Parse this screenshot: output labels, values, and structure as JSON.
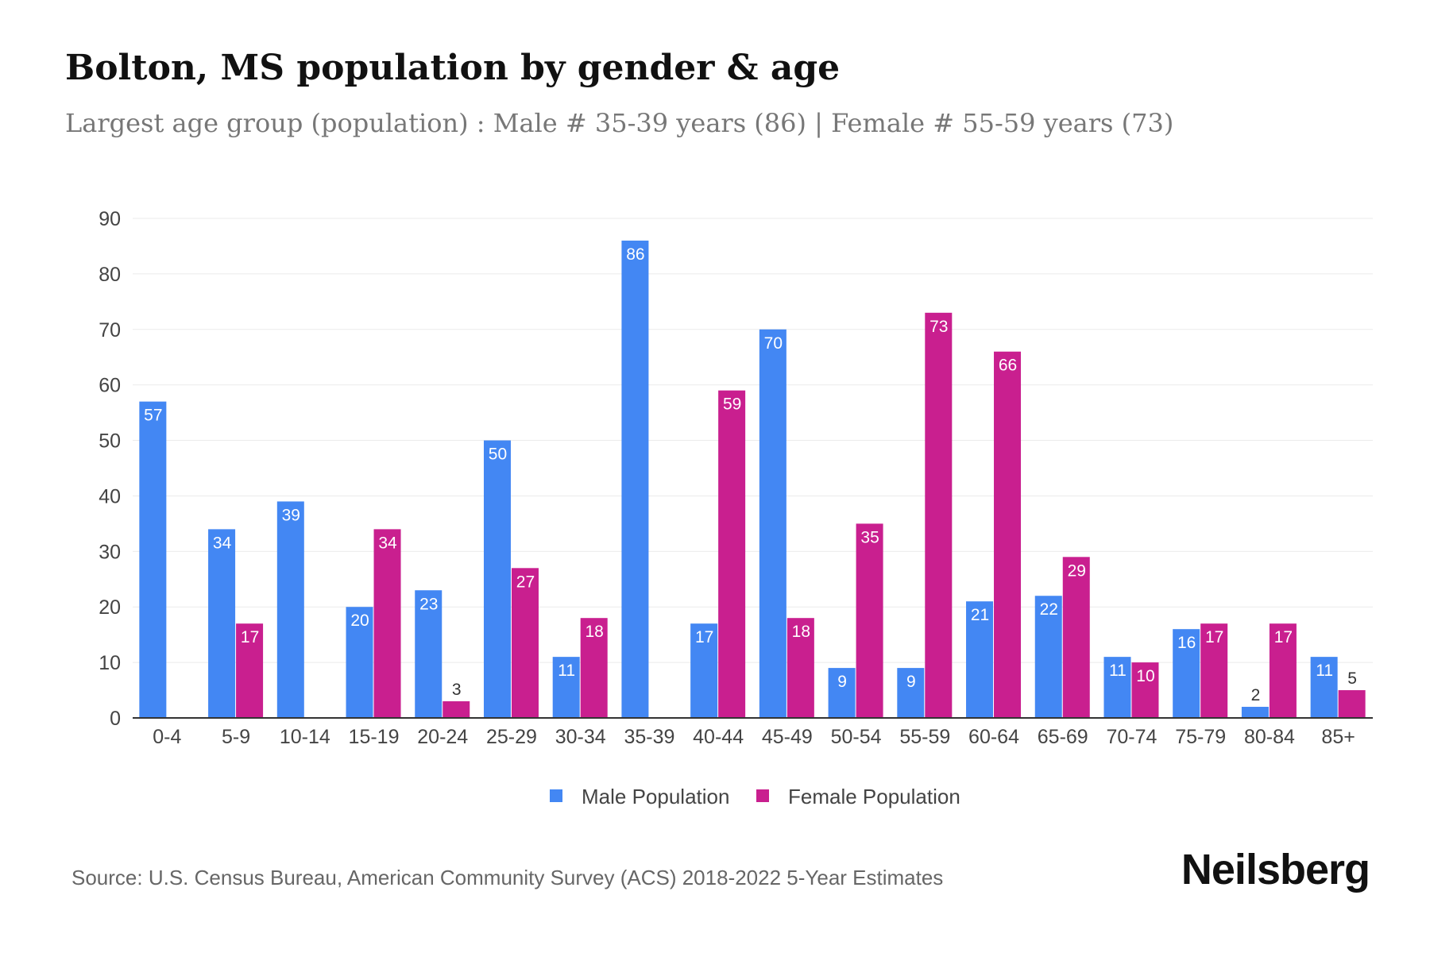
{
  "chart_data": {
    "type": "bar",
    "title": "Bolton, MS population by gender & age",
    "subtitle": "Largest age group (population) : Male # 35-39 years (86) | Female # 55-59 years (73)",
    "xlabel": "",
    "ylabel": "",
    "ylim": [
      0,
      90
    ],
    "yticks": [
      0,
      10,
      20,
      30,
      40,
      50,
      60,
      70,
      80,
      90
    ],
    "grid": true,
    "legend_position": "bottom-center",
    "categories": [
      "0-4",
      "5-9",
      "10-14",
      "15-19",
      "20-24",
      "25-29",
      "30-34",
      "35-39",
      "40-44",
      "45-49",
      "50-54",
      "55-59",
      "60-64",
      "65-69",
      "70-74",
      "75-79",
      "80-84",
      "85+"
    ],
    "series": [
      {
        "name": "Male Population",
        "color": "#4387F3",
        "values": [
          57,
          34,
          39,
          20,
          23,
          50,
          11,
          86,
          17,
          70,
          9,
          9,
          21,
          22,
          11,
          16,
          2,
          11
        ]
      },
      {
        "name": "Female Population",
        "color": "#C91F8F",
        "values": [
          0,
          17,
          0,
          34,
          3,
          27,
          18,
          0,
          59,
          18,
          35,
          73,
          66,
          29,
          10,
          17,
          17,
          5
        ]
      }
    ]
  },
  "source": "Source: U.S. Census Bureau, American Community Survey (ACS) 2018-2022 5-Year Estimates",
  "logo": "Neilsberg"
}
